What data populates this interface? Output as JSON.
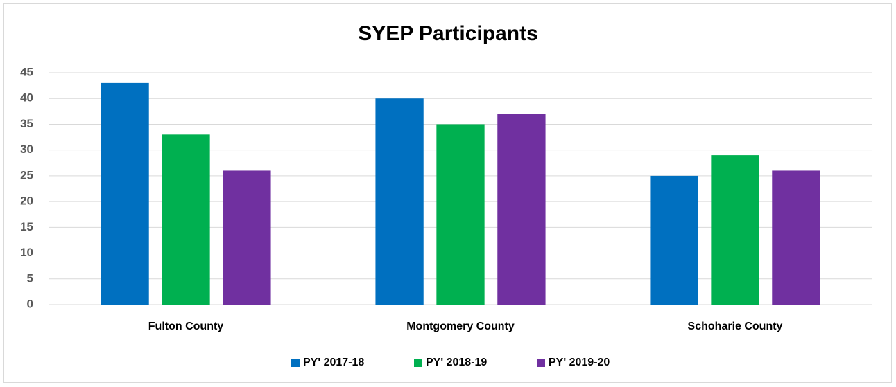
{
  "chart_data": {
    "type": "bar",
    "title": "SYEP Participants",
    "categories": [
      "Fulton County",
      "Montgomery County",
      "Schoharie County"
    ],
    "series": [
      {
        "name": "PY' 2017-18",
        "color": "#0070c0",
        "values": [
          43,
          40,
          25
        ]
      },
      {
        "name": "PY' 2018-19",
        "color": "#00b050",
        "values": [
          33,
          35,
          29
        ]
      },
      {
        "name": "PY' 2019-20",
        "color": "#7030a0",
        "values": [
          26,
          37,
          26
        ]
      }
    ],
    "ylim": [
      0,
      45
    ],
    "yticks": [
      0,
      5,
      10,
      15,
      20,
      25,
      30,
      35,
      40,
      45
    ],
    "grid": true,
    "legend": "bottom"
  }
}
